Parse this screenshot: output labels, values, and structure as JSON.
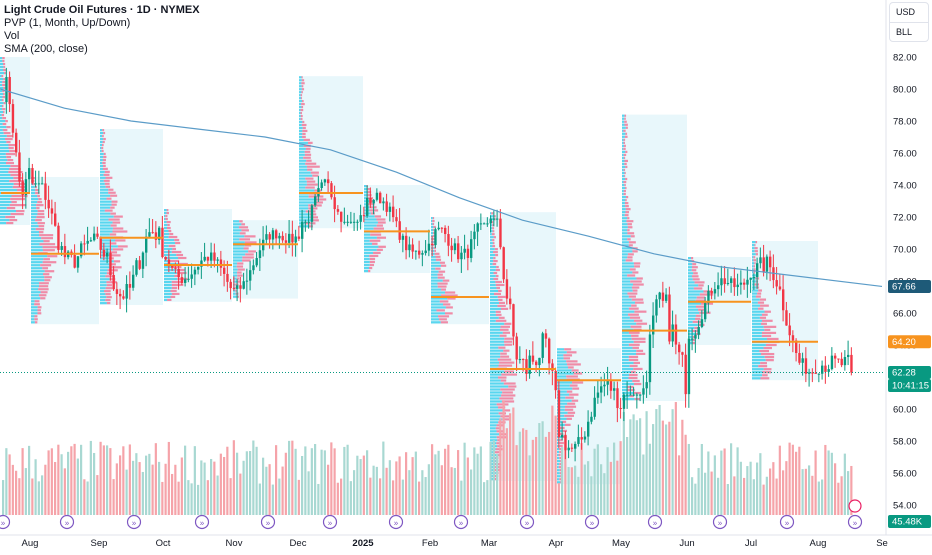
{
  "legend": {
    "title": "Light Crude Oil Futures · 1D · NYMEX",
    "pvp": "PVP (1, Month, Up/Down)",
    "vol": "Vol",
    "sma": "SMA (200, close)"
  },
  "units": {
    "currency": "USD",
    "unit": "BLL"
  },
  "colors": {
    "up": "#089981",
    "down": "#f23645",
    "sma": "#5b9cc8",
    "poc": "#f7931e",
    "profile_bg": "#e8f7fb",
    "profile_up": "#3fd0ec",
    "profile_down": "#f07898",
    "vol_up": "#a8d8d2",
    "vol_down": "#f5a3a9",
    "last_price": "#089981",
    "sma_label": "#1e5a78",
    "poc_label": "#f7931e"
  },
  "chart_data": {
    "type": "candlestick",
    "title": "Light Crude Oil Futures · 1D · NYMEX",
    "x_ticks": [
      "Aug",
      "Sep",
      "Oct",
      "Nov",
      "Dec",
      "2025",
      "Feb",
      "Mar",
      "Apr",
      "May",
      "Jun",
      "Jul",
      "Aug",
      "Se"
    ],
    "y_ticks": [
      54.0,
      56.0,
      58.0,
      60.0,
      62.0,
      64.0,
      66.0,
      68.0,
      70.0,
      72.0,
      74.0,
      76.0,
      78.0,
      80.0,
      82.0
    ],
    "y_range": [
      53.0,
      84.0
    ],
    "monthly_close_path": [
      {
        "month": "Aug",
        "open": 79.5,
        "high": 82.0,
        "low": 71.5,
        "close": 73.5
      },
      {
        "month": "Sep",
        "open": 73.5,
        "high": 74.5,
        "low": 65.3,
        "close": 68.5
      },
      {
        "month": "Oct",
        "open": 68.5,
        "high": 77.5,
        "low": 66.5,
        "close": 69.5
      },
      {
        "month": "Nov",
        "open": 69.5,
        "high": 72.5,
        "low": 66.7,
        "close": 68.0
      },
      {
        "month": "Dec",
        "open": 68.0,
        "high": 71.8,
        "low": 66.9,
        "close": 71.7
      },
      {
        "month": "Jan",
        "open": 71.7,
        "high": 80.8,
        "low": 71.3,
        "close": 73.0
      },
      {
        "month": "Feb",
        "open": 73.0,
        "high": 74.0,
        "low": 68.5,
        "close": 69.8
      },
      {
        "month": "Mar",
        "open": 69.8,
        "high": 72.0,
        "low": 65.3,
        "close": 71.5
      },
      {
        "month": "Apr",
        "open": 71.5,
        "high": 72.3,
        "low": 55.5,
        "close": 58.2
      },
      {
        "month": "May",
        "open": 58.2,
        "high": 63.8,
        "low": 55.3,
        "close": 60.8
      },
      {
        "month": "Jun",
        "open": 60.8,
        "high": 78.4,
        "low": 60.5,
        "close": 65.1
      },
      {
        "month": "Jul",
        "open": 65.1,
        "high": 69.5,
        "low": 64.0,
        "close": 69.3
      },
      {
        "month": "Aug",
        "open": 69.3,
        "high": 70.5,
        "low": 61.8,
        "close": 62.28
      }
    ],
    "sma200": [
      {
        "month": "Aug",
        "value": 80.0
      },
      {
        "month": "Sep",
        "value": 78.8
      },
      {
        "month": "Oct",
        "value": 78.0
      },
      {
        "month": "Nov",
        "value": 77.5
      },
      {
        "month": "Dec",
        "value": 77.0
      },
      {
        "month": "Jan",
        "value": 76.2
      },
      {
        "month": "Feb",
        "value": 74.8
      },
      {
        "month": "Mar",
        "value": 73.2
      },
      {
        "month": "Apr",
        "value": 71.8
      },
      {
        "month": "May",
        "value": 70.8
      },
      {
        "month": "Jun",
        "value": 69.7
      },
      {
        "month": "Jul",
        "value": 68.9
      },
      {
        "month": "Aug",
        "value": 67.66
      }
    ],
    "volume_profile_poc": [
      {
        "month": "Aug",
        "price": 73.5
      },
      {
        "month": "Sep",
        "price": 69.7
      },
      {
        "month": "Oct",
        "price": 70.7
      },
      {
        "month": "Nov",
        "price": 69.0
      },
      {
        "month": "Dec",
        "price": 70.3
      },
      {
        "month": "Jan",
        "price": 73.5
      },
      {
        "month": "Feb",
        "price": 71.1
      },
      {
        "month": "Mar",
        "price": 67.0
      },
      {
        "month": "Apr",
        "price": 62.5
      },
      {
        "month": "May",
        "price": 61.8
      },
      {
        "month": "Jun",
        "price": 64.9
      },
      {
        "month": "Jul",
        "price": 66.7
      },
      {
        "month": "Aug",
        "price": 64.2
      }
    ],
    "price_labels": {
      "sma": "67.66",
      "poc": "64.20",
      "last": "62.28",
      "countdown": "10:41:15",
      "volume": "45.48K"
    },
    "grid": false,
    "volume_pane": true
  }
}
